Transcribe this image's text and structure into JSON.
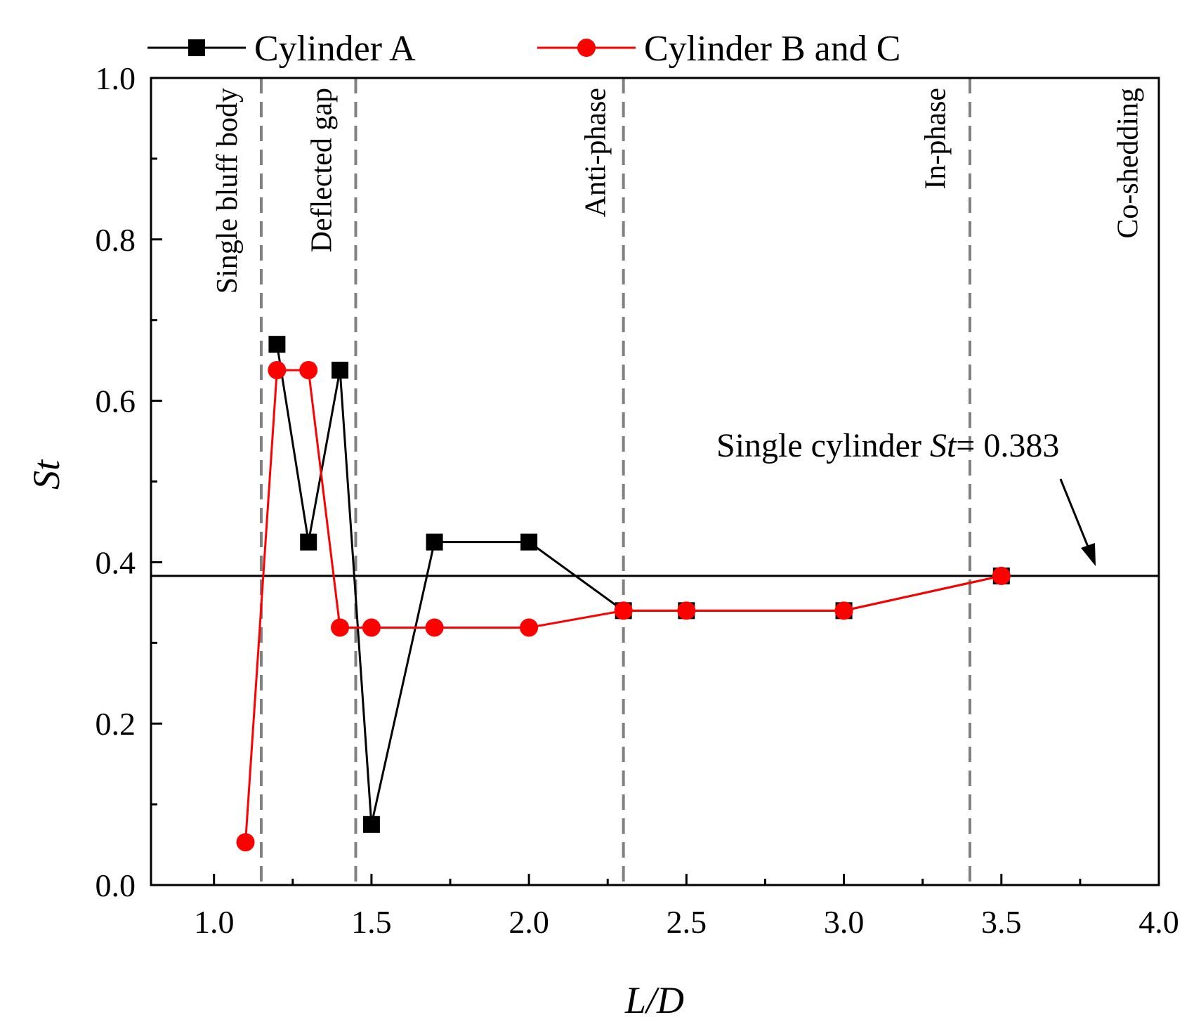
{
  "chart_data": {
    "type": "line",
    "xlabel": "L/D",
    "ylabel": "St",
    "xlim": [
      0.8,
      4.0
    ],
    "ylim": [
      0.0,
      1.0
    ],
    "x_ticks": [
      "1.0",
      "1.5",
      "2.0",
      "2.5",
      "3.0",
      "3.5",
      "4.0"
    ],
    "y_ticks": [
      "0.0",
      "0.2",
      "0.4",
      "0.6",
      "0.8",
      "1.0"
    ],
    "legend_position": "top, above plot",
    "series": [
      {
        "name": "Cylinder A",
        "color": "#000000",
        "marker": "square",
        "x": [
          1.2,
          1.3,
          1.4,
          1.5,
          1.7,
          2.0,
          2.3,
          2.5,
          3.0,
          3.5
        ],
        "y": [
          0.67,
          0.425,
          0.638,
          0.075,
          0.425,
          0.425,
          0.34,
          0.34,
          0.34,
          0.383
        ]
      },
      {
        "name": "Cylinder B and C",
        "color": "#ff0000",
        "marker": "circle",
        "x": [
          1.1,
          1.2,
          1.3,
          1.4,
          1.5,
          1.7,
          2.0,
          2.3,
          2.5,
          3.0,
          3.5
        ],
        "y": [
          0.053,
          0.638,
          0.638,
          0.319,
          0.319,
          0.319,
          0.319,
          0.34,
          0.34,
          0.34,
          0.383
        ]
      }
    ],
    "reference_line": {
      "y": 0.383,
      "label_prefix": "Single cylinder ",
      "label_var": "St",
      "label_suffix": "= 0.383"
    },
    "regions": {
      "boundaries_x": [
        1.15,
        1.45,
        2.3,
        3.4
      ],
      "labels": [
        {
          "text": "Single bluff body",
          "x": 1.05
        },
        {
          "text": "Deflected gap",
          "x": 1.35
        },
        {
          "text": "Anti-phase",
          "x": 2.22
        },
        {
          "text": "In-phase",
          "x": 3.3
        },
        {
          "text": "Co-shedding",
          "x": 3.91
        }
      ]
    }
  }
}
